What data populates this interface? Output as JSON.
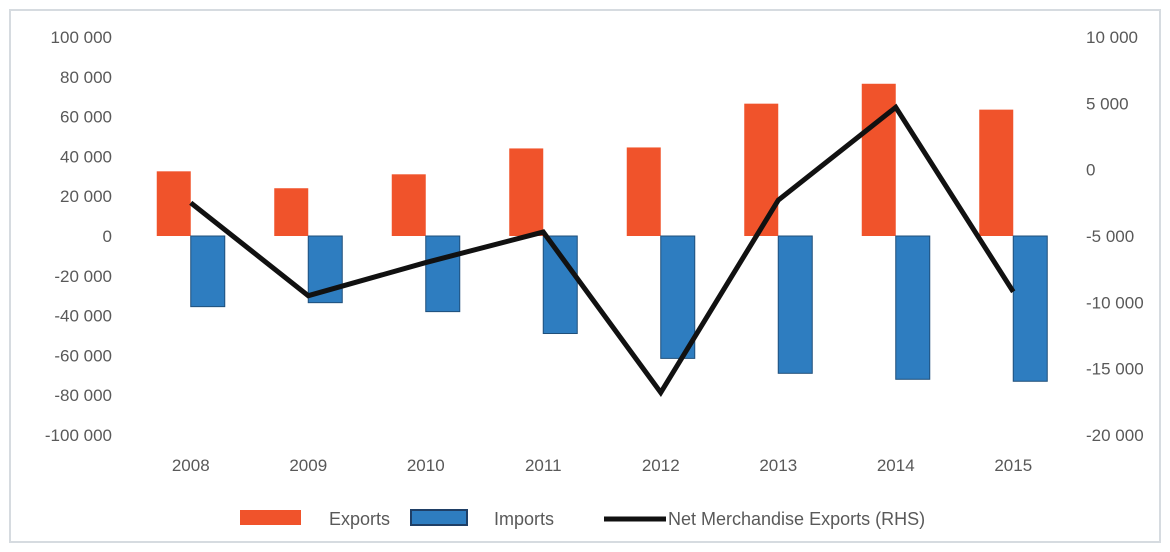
{
  "chart_data": {
    "type": "bar",
    "title": "",
    "categories": [
      "2008",
      "2009",
      "2010",
      "2011",
      "2012",
      "2013",
      "2014",
      "2015"
    ],
    "series": [
      {
        "name": "Exports",
        "kind": "bar",
        "axis": "left",
        "color": "#f0532b",
        "values": [
          32500,
          24000,
          31000,
          44000,
          44500,
          66500,
          76500,
          63500
        ]
      },
      {
        "name": "Imports",
        "kind": "bar",
        "axis": "left",
        "color": "#2e7dc0",
        "values": [
          -35500,
          -33500,
          -38000,
          -49000,
          -61500,
          -69000,
          -72000,
          -73000
        ]
      },
      {
        "name": "Net Merchandise Exports (RHS)",
        "kind": "line",
        "axis": "right",
        "color": "#111111",
        "values": [
          -2500,
          -9500,
          -7000,
          -4700,
          -16800,
          -2300,
          4700,
          -9200
        ]
      }
    ],
    "y_left": {
      "lim": [
        -100000,
        100000
      ],
      "ticks": [
        "100 000",
        "80 000",
        "60 000",
        "40 000",
        "20 000",
        "0",
        "-20 000",
        "-40 000",
        "-60 000",
        "-80 000",
        "-100 000"
      ]
    },
    "y_right": {
      "lim": [
        -20000,
        10000
      ],
      "ticks": [
        "10 000",
        "5 000",
        "0",
        "-5 000",
        "-10 000",
        "-15 000",
        "-20 000"
      ]
    },
    "grid": false,
    "legend": "bottom"
  }
}
